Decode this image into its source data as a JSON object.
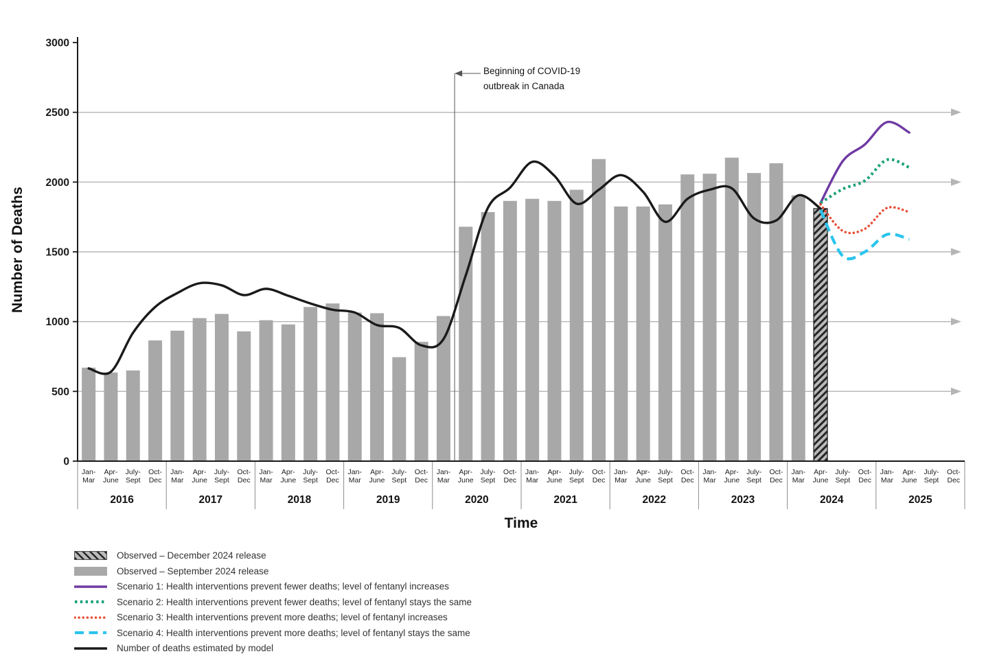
{
  "chart_data": {
    "type": "bar",
    "subtype": "quarterly bars with model line and four forecast scenario lines",
    "title": "",
    "ylabel": "Number of Deaths",
    "xlabel": "Time",
    "ylim": [
      0,
      3000
    ],
    "yticks": [
      0,
      500,
      1000,
      1500,
      2000,
      2500,
      3000
    ],
    "grid": true,
    "years": [
      "2016",
      "2017",
      "2018",
      "2019",
      "2020",
      "2021",
      "2022",
      "2023",
      "2024",
      "2025"
    ],
    "quarter_tick_lines": [
      [
        "Jan-",
        "Mar"
      ],
      [
        "Apr-",
        "June"
      ],
      [
        "July-",
        "Sept"
      ],
      [
        "Oct-",
        "Dec"
      ]
    ],
    "annotation": {
      "line1": "Beginning of COVID-19",
      "line2": "outbreak in Canada",
      "x_index": 16
    },
    "series": [
      {
        "name": "Observed – September 2024 release",
        "kind": "bar",
        "color": "#a8a8a8",
        "start_index": 0,
        "values": [
          670,
          635,
          650,
          865,
          935,
          1025,
          1055,
          930,
          1010,
          980,
          1105,
          1130,
          1065,
          1060,
          745,
          855,
          1040,
          1680,
          1785,
          1865,
          1880,
          1865,
          1945,
          2165,
          1825,
          1825,
          1840,
          2055,
          2060,
          2175,
          2065,
          2135,
          1905
        ]
      },
      {
        "name": "Observed – December 2024 release",
        "kind": "bar-hatched",
        "color": "hatch",
        "start_index": 33,
        "values": [
          1810
        ]
      },
      {
        "name": "Number of deaths estimated by model",
        "kind": "line",
        "style": "solid",
        "color": "#1a1a1a",
        "start_index": 0,
        "values": [
          665,
          640,
          920,
          1105,
          1205,
          1275,
          1260,
          1190,
          1235,
          1185,
          1130,
          1085,
          1065,
          975,
          955,
          830,
          875,
          1330,
          1815,
          1960,
          2145,
          2045,
          1845,
          1945,
          2050,
          1930,
          1715,
          1880,
          1945,
          1955,
          1740,
          1725,
          1905,
          1810
        ]
      },
      {
        "name": "Scenario 1: Health interventions prevent fewer deaths; level of fentanyl increases",
        "kind": "line",
        "style": "solid",
        "color": "#6f3aa3",
        "start_index": 33,
        "values": [
          1850,
          2150,
          2270,
          2430,
          2355
        ]
      },
      {
        "name": "Scenario 2: Health interventions prevent fewer deaths; level of fentanyl stays the same",
        "kind": "line",
        "style": "dotted-square",
        "color": "#1aa179",
        "start_index": 33,
        "values": [
          1850,
          1950,
          2010,
          2160,
          2105
        ]
      },
      {
        "name": "Scenario 3: Health interventions prevent more deaths; level of fentanyl increases",
        "kind": "line",
        "style": "dotted",
        "color": "#e8503a",
        "start_index": 33,
        "values": [
          1840,
          1650,
          1665,
          1815,
          1785
        ]
      },
      {
        "name": "Scenario 4: Health interventions prevent more deaths; level of fentanyl stays the same",
        "kind": "line",
        "style": "dashed",
        "color": "#2bc4ee",
        "start_index": 33,
        "values": [
          1800,
          1470,
          1500,
          1625,
          1590
        ]
      }
    ]
  },
  "legend": {
    "items": [
      {
        "label": "Observed – December 2024 release",
        "swatch": "hatch",
        "color": "#b9b9b9"
      },
      {
        "label": "Observed – September 2024 release",
        "swatch": "rect",
        "color": "#a8a8a8"
      },
      {
        "label": "Scenario 1: Health interventions prevent fewer deaths; level of fentanyl increases",
        "swatch": "line",
        "style": "solid",
        "color": "#6f3aa3"
      },
      {
        "label": "Scenario 2: Health interventions prevent fewer deaths; level of fentanyl stays the same",
        "swatch": "line",
        "style": "dotted-square",
        "color": "#1aa179"
      },
      {
        "label": "Scenario 3: Health interventions prevent more deaths; level of fentanyl increases",
        "swatch": "line",
        "style": "dotted",
        "color": "#e8503a"
      },
      {
        "label": "Scenario 4: Health interventions prevent more deaths; level of fentanyl stays the same",
        "swatch": "line",
        "style": "dashed",
        "color": "#2bc4ee"
      },
      {
        "label": "Number of deaths estimated by model",
        "swatch": "line",
        "style": "solid",
        "color": "#1a1a1a"
      }
    ]
  }
}
